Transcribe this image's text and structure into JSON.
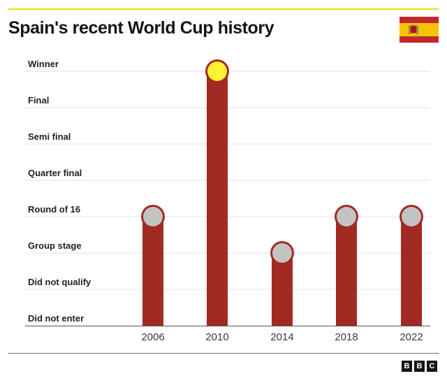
{
  "title": "Spain's recent World Cup history",
  "flag_icon": "spain-flag-icon",
  "logo": {
    "letters": [
      "B",
      "B",
      "C"
    ]
  },
  "colors": {
    "accent_rule": "#f5d90a",
    "bar": "#a12a23",
    "marker_default": "#c3c3c3",
    "marker_winner": "#fff134",
    "flag_red": "#c1272d",
    "flag_yellow": "#f6c400"
  },
  "chart_data": {
    "type": "bar",
    "title": "Spain's recent World Cup history",
    "categories": [
      "2006",
      "2010",
      "2014",
      "2018",
      "2022"
    ],
    "stages": [
      "Did not enter",
      "Did not qualify",
      "Group stage",
      "Round of 16",
      "Quarter final",
      "Semi final",
      "Final",
      "Winner"
    ],
    "values": [
      "Round of 16",
      "Winner",
      "Group stage",
      "Round of 16",
      "Round of 16"
    ],
    "xlabel": "",
    "ylabel": "",
    "grid": true,
    "highlight": "Winner"
  }
}
